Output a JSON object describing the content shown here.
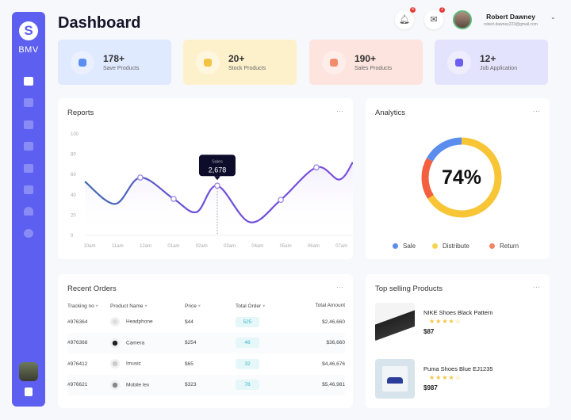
{
  "sidebar": {
    "brand": "BMV",
    "logo_letter": "S",
    "items": [
      "dashboard-icon",
      "chart-icon",
      "columns-icon",
      "document-icon",
      "calendar-icon",
      "calendar-alert-icon",
      "bell-icon",
      "gear-icon"
    ],
    "accent": "#5d5ff0"
  },
  "header": {
    "title": "Dashboard",
    "notifications": "4",
    "messages": "2",
    "user_name": "Robert Dawney",
    "user_email": "robert.dawney223@gmail.com"
  },
  "stats": [
    {
      "value": "178+",
      "label": "Save Products",
      "bg": "#dfe9ff",
      "icon_color": "#5a8ef0",
      "icon": "heart-icon"
    },
    {
      "value": "20+",
      "label": "Stock Products",
      "bg": "#fdf1cc",
      "icon_color": "#f5c342",
      "icon": "box-icon"
    },
    {
      "value": "190+",
      "label": "Sales Products",
      "bg": "#fde4de",
      "icon_color": "#f28c6a",
      "icon": "bag-icon"
    },
    {
      "value": "12+",
      "label": "Job Application",
      "bg": "#e4e3fd",
      "icon_color": "#6b5ef0",
      "icon": "briefcase-icon"
    }
  ],
  "reports": {
    "title": "Reports",
    "menu": "···"
  },
  "chart_data": {
    "type": "line",
    "categories": [
      "10am",
      "11am",
      "12am",
      "01am",
      "02am",
      "03am",
      "04am",
      "05am",
      "06am",
      "07am"
    ],
    "yticks": [
      0,
      20,
      40,
      60,
      80,
      100
    ],
    "ylim": [
      0,
      100
    ],
    "grid": false,
    "points": [
      [
        -0.17,
        53
      ],
      [
        0.91,
        31
      ],
      [
        1.81,
        57
      ],
      [
        3.0,
        36
      ],
      [
        3.82,
        23
      ],
      [
        4.56,
        49
      ],
      [
        5.72,
        13
      ],
      [
        6.83,
        35
      ],
      [
        8.1,
        67
      ],
      [
        8.92,
        55
      ],
      [
        9.4,
        72
      ]
    ],
    "markers": [
      2,
      3,
      5,
      7,
      8
    ],
    "tooltip": {
      "series": "Sales",
      "value": "2,678",
      "point": 5
    },
    "color": "#6b4fd8"
  },
  "analytics": {
    "title": "Analytics",
    "menu": "···",
    "percent": "74%",
    "segments": [
      {
        "name": "Distribute",
        "share": 0.66,
        "color": "#f8c537"
      },
      {
        "name": "Return",
        "share": 0.17,
        "color": "#f4603f"
      },
      {
        "name": "Sale",
        "share": 0.17,
        "color": "#5b8def"
      }
    ],
    "legend": [
      {
        "label": "Sale",
        "color": "#5b8def"
      },
      {
        "label": "Distribute",
        "color": "#f8d252"
      },
      {
        "label": "Return",
        "color": "#f28468"
      }
    ]
  },
  "orders": {
    "title": "Recent Orders",
    "menu": "···",
    "columns": [
      "Tracking no",
      "Product Name",
      "Price",
      "Total Order",
      "Total Amount"
    ],
    "rows": [
      {
        "id": "#976364",
        "product": "Headphone",
        "price": "$44",
        "orders": "525",
        "amount": "$2,46,660"
      },
      {
        "id": "#976368",
        "product": "Camera",
        "price": "$254",
        "orders": "46",
        "amount": "$36,660"
      },
      {
        "id": "#976412",
        "product": "Imusic",
        "price": "$65",
        "orders": "32",
        "amount": "$4,46,676"
      },
      {
        "id": "#976621",
        "product": "Mobile lex",
        "price": "$323",
        "orders": "78",
        "amount": "$5,46,981"
      }
    ]
  },
  "top_products": {
    "title": "Top selling Products",
    "menu": "···",
    "items": [
      {
        "name": "NIKE Shoes Black Pattern",
        "rating": 4,
        "stars": "★★★★☆",
        "price": "$87"
      },
      {
        "name": "Puma Shoes Blue EJ1235",
        "rating": 4,
        "stars": "★★★★☆",
        "price": "$987"
      }
    ]
  }
}
